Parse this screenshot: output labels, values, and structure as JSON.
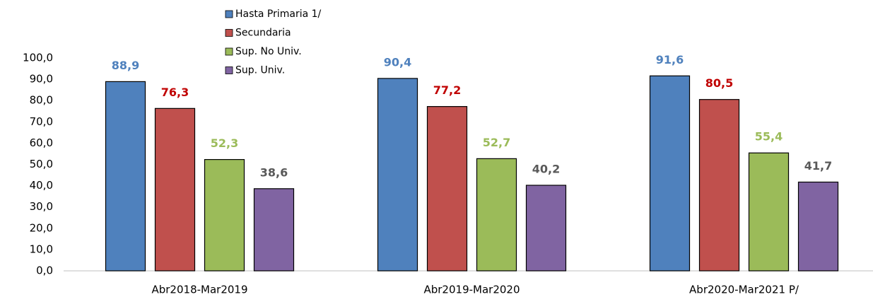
{
  "chart_data": {
    "type": "bar",
    "categories": [
      "Abr2018-Mar2019",
      "Abr2019-Mar2020",
      "Abr2020-Mar2021 P/"
    ],
    "series": [
      {
        "name": "Hasta Primaria 1/",
        "color": "#4f81bd",
        "label_color": "#4f81bd",
        "values": [
          88.9,
          90.4,
          91.6
        ],
        "value_labels": [
          "88,9",
          "90,4",
          "91,6"
        ]
      },
      {
        "name": "Secundaria",
        "color": "#c0504d",
        "label_color": "#c00000",
        "values": [
          76.3,
          77.2,
          80.5
        ],
        "value_labels": [
          "76,3",
          "77,2",
          "80,5"
        ]
      },
      {
        "name": "Sup. No Univ.",
        "color": "#9bbb59",
        "label_color": "#9bbb59",
        "values": [
          52.3,
          52.7,
          55.4
        ],
        "value_labels": [
          "52,3",
          "52,7",
          "55,4"
        ]
      },
      {
        "name": "Sup. Univ.",
        "color": "#8064a2",
        "label_color": "#595959",
        "values": [
          38.6,
          40.2,
          41.7
        ],
        "value_labels": [
          "38,6",
          "40,2",
          "41,7"
        ]
      }
    ],
    "ylim": [
      0,
      100
    ],
    "yticks": [
      {
        "value": 0,
        "label": "0,0"
      },
      {
        "value": 10,
        "label": "10,0"
      },
      {
        "value": 20,
        "label": "20,0"
      },
      {
        "value": 30,
        "label": "30,0"
      },
      {
        "value": 40,
        "label": "40,0"
      },
      {
        "value": 50,
        "label": "50,0"
      },
      {
        "value": 60,
        "label": "60,0"
      },
      {
        "value": 70,
        "label": "70,0"
      },
      {
        "value": 80,
        "label": "80,0"
      },
      {
        "value": 90,
        "label": "90,0"
      },
      {
        "value": 100,
        "label": "100,0"
      }
    ],
    "grid": false
  }
}
